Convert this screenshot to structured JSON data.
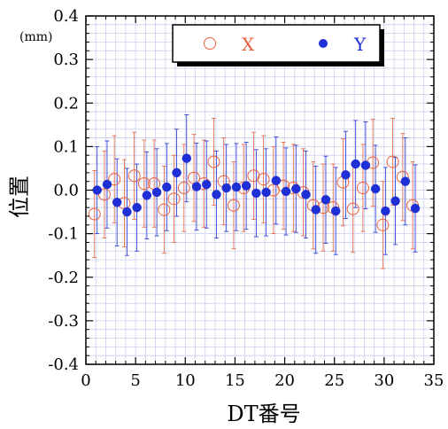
{
  "chart_data": {
    "type": "scatter",
    "xlabel": "DT番号",
    "ylabel": "位置",
    "unit_label": "(mm)",
    "xlim": [
      0,
      35
    ],
    "ylim": [
      -0.4,
      0.4
    ],
    "xticks": [
      "0",
      "5",
      "10",
      "15",
      "20",
      "25",
      "30",
      "35"
    ],
    "yticks": [
      "0.4",
      "0.3",
      "0.2",
      "0.1",
      "0.0",
      "-0.1",
      "-0.2",
      "-0.3",
      "-0.4"
    ],
    "grid": true,
    "legend_position": "top-right",
    "series": [
      {
        "name": "X",
        "marker": "open-circle",
        "color": "#e8603c",
        "x": [
          1,
          2,
          3,
          4,
          5,
          6,
          7,
          8,
          9,
          10,
          11,
          12,
          13,
          14,
          15,
          16,
          17,
          18,
          19,
          20,
          21,
          22,
          23,
          24,
          25,
          26,
          27,
          28,
          29,
          30,
          31,
          32,
          33
        ],
        "y": [
          -0.055,
          -0.01,
          0.025,
          -0.03,
          0.033,
          0.015,
          0.015,
          -0.045,
          -0.02,
          0.005,
          0.028,
          0.015,
          0.065,
          0.02,
          -0.035,
          0.005,
          0.033,
          0.025,
          0.0,
          0.01,
          0.005,
          -0.005,
          -0.035,
          -0.04,
          -0.04,
          0.018,
          -0.043,
          0.005,
          0.063,
          -0.08,
          0.065,
          0.03,
          -0.035
        ],
        "err": [
          0.1,
          0.1,
          0.1,
          0.1,
          0.1,
          0.1,
          0.1,
          0.1,
          0.1,
          0.1,
          0.1,
          0.1,
          0.1,
          0.1,
          0.1,
          0.1,
          0.1,
          0.1,
          0.1,
          0.1,
          0.1,
          0.1,
          0.1,
          0.1,
          0.1,
          0.1,
          0.1,
          0.1,
          0.1,
          0.1,
          0.1,
          0.1,
          0.1
        ]
      },
      {
        "name": "Y",
        "marker": "filled-circle",
        "color": "#1f2fd6",
        "x": [
          1,
          2,
          3,
          4,
          5,
          6,
          7,
          8,
          9,
          10,
          11,
          12,
          13,
          14,
          15,
          16,
          17,
          18,
          19,
          20,
          21,
          22,
          23,
          24,
          25,
          26,
          27,
          28,
          29,
          30,
          31,
          32,
          33
        ],
        "y": [
          0.0,
          0.013,
          -0.028,
          -0.05,
          -0.04,
          -0.012,
          -0.005,
          0.007,
          0.04,
          0.073,
          0.008,
          0.013,
          -0.01,
          0.005,
          0.007,
          0.01,
          -0.007,
          -0.005,
          0.022,
          -0.003,
          0.003,
          -0.01,
          -0.045,
          -0.022,
          -0.048,
          0.035,
          0.06,
          0.057,
          0.003,
          -0.048,
          -0.025,
          0.02,
          -0.042
        ],
        "err": [
          0.1,
          0.1,
          0.1,
          0.1,
          0.1,
          0.1,
          0.1,
          0.1,
          0.1,
          0.1,
          0.1,
          0.1,
          0.1,
          0.1,
          0.1,
          0.1,
          0.1,
          0.1,
          0.1,
          0.1,
          0.1,
          0.1,
          0.1,
          0.1,
          0.1,
          0.1,
          0.1,
          0.1,
          0.1,
          0.1,
          0.1,
          0.1,
          0.1
        ]
      }
    ]
  }
}
